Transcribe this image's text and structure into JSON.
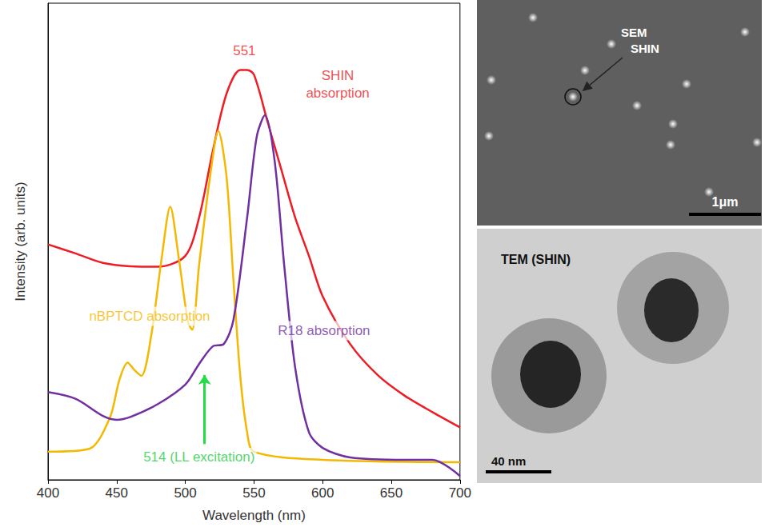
{
  "chart_data": {
    "type": "line",
    "x_label": "Wavelength (nm)",
    "y_label": "Intensity (arb. units)",
    "xlim": [
      400,
      700
    ],
    "xticks": [
      400,
      450,
      500,
      550,
      600,
      650,
      700
    ],
    "ylim": [
      0,
      100
    ],
    "tick_labels": "x",
    "grid": false,
    "series": [
      {
        "name": "SHIN absorption",
        "color": "#ee1c25",
        "x": [
          400,
          420,
          440,
          460,
          480,
          500,
          510,
          520,
          530,
          540,
          545,
          550,
          560,
          570,
          580,
          590,
          600,
          620,
          640,
          660,
          680,
          700
        ],
        "values": [
          49.4,
          47.5,
          45.5,
          44.8,
          44.7,
          47,
          55,
          69,
          81,
          86,
          86,
          85,
          75,
          65,
          55,
          47,
          38.5,
          28.5,
          22,
          17.6,
          14.2,
          11
        ]
      },
      {
        "name": "nBPTCD absorption",
        "color": "#f5b800",
        "x": [
          400,
          430,
          445,
          452,
          458,
          463,
          468,
          475,
          483,
          489,
          495,
          502,
          505,
          510,
          518,
          524,
          530,
          535,
          540,
          545,
          550,
          600,
          700
        ],
        "values": [
          5.9,
          6.5,
          13,
          21,
          24.6,
          23,
          21.8,
          30,
          47,
          57.3,
          47,
          33,
          31.5,
          45,
          63.6,
          73.2,
          63.6,
          42,
          21.8,
          10,
          5.9,
          4.2,
          3.7
        ]
      },
      {
        "name": "R18 absorption",
        "color": "#7030a0",
        "x": [
          400,
          420,
          440,
          450,
          460,
          480,
          500,
          510,
          520,
          528,
          535,
          545,
          552,
          558,
          565,
          572,
          580,
          590,
          600,
          620,
          660,
          680,
          700
        ],
        "values": [
          18.4,
          17,
          13.4,
          12.6,
          13.2,
          15.9,
          20,
          24.3,
          28,
          28.5,
          33.5,
          55,
          72,
          76.5,
          67,
          45,
          23.5,
          10,
          6.7,
          4.7,
          4.2,
          4.2,
          0.8
        ]
      }
    ],
    "annotations": [
      {
        "text": "551",
        "x": 543,
        "y": 90,
        "color": "#ee1c25"
      },
      {
        "text": "SHIN\nabsorption",
        "x": 611,
        "y": 83,
        "color": "#ee1c25"
      },
      {
        "text": "nBPTCD absorption",
        "x": 474,
        "y": 34.3,
        "color": "#f5b800"
      },
      {
        "text": "R18 absorption",
        "x": 601,
        "y": 31.3,
        "color": "#7030a0"
      },
      {
        "text": "514 (LL excitation)",
        "x": 510,
        "y": 4.7,
        "color": "#22cc44"
      }
    ],
    "arrow": {
      "x": 514,
      "y": [
        7.5,
        22
      ],
      "color": "#22dd44"
    }
  },
  "images": [
    {
      "kind": "SEM",
      "label": "SEM",
      "pointer": "SHIN",
      "scale_bar": "1μm"
    },
    {
      "kind": "TEM",
      "label": "TEM (SHIN)",
      "scale_bar": "40 nm"
    }
  ]
}
